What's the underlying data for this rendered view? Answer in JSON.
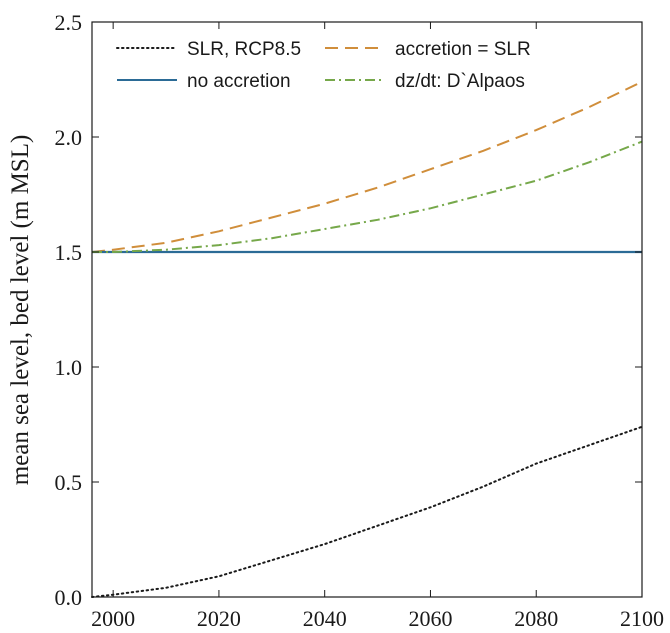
{
  "chart_data": {
    "type": "line",
    "title": "",
    "xlabel": "",
    "ylabel": "mean sea level, bed level (m MSL)",
    "xlim": [
      1996,
      2100
    ],
    "ylim": [
      0,
      2.5
    ],
    "x_ticks": [
      2000,
      2020,
      2040,
      2060,
      2080,
      2100
    ],
    "x_tick_labels": [
      "2000",
      "2020",
      "2040",
      "2060",
      "2080",
      "2100"
    ],
    "y_ticks": [
      0,
      0.5,
      1.0,
      1.5,
      2.0,
      2.5
    ],
    "y_tick_labels": [
      "0.0",
      "0.5",
      "1.0",
      "1.5",
      "2.0",
      "2.5"
    ],
    "grid": false,
    "legend_position": "top",
    "series": [
      {
        "name": "SLR, RCP8.5",
        "color": "#1a1a1a",
        "style": "dotted",
        "x": [
          1996,
          2000,
          2010,
          2020,
          2030,
          2040,
          2050,
          2060,
          2070,
          2080,
          2090,
          2100
        ],
        "y": [
          0.0,
          0.01,
          0.04,
          0.09,
          0.16,
          0.23,
          0.31,
          0.39,
          0.48,
          0.58,
          0.66,
          0.74
        ]
      },
      {
        "name": "accretion = SLR",
        "color": "#d08e3b",
        "style": "dashed",
        "x": [
          1996,
          2000,
          2010,
          2020,
          2030,
          2040,
          2050,
          2060,
          2070,
          2080,
          2090,
          2100
        ],
        "y": [
          1.5,
          1.51,
          1.54,
          1.59,
          1.65,
          1.71,
          1.78,
          1.86,
          1.94,
          2.03,
          2.13,
          2.24
        ]
      },
      {
        "name": "no accretion",
        "color": "#2b6b96",
        "style": "solid",
        "x": [
          1996,
          2100
        ],
        "y": [
          1.5,
          1.5
        ]
      },
      {
        "name": "dz/dt: D`Alpaos",
        "color": "#76a84a",
        "style": "dashdot",
        "x": [
          1996,
          2000,
          2010,
          2020,
          2030,
          2040,
          2050,
          2060,
          2070,
          2080,
          2090,
          2100
        ],
        "y": [
          1.5,
          1.5,
          1.51,
          1.53,
          1.56,
          1.6,
          1.64,
          1.69,
          1.75,
          1.81,
          1.89,
          1.98
        ]
      }
    ]
  }
}
